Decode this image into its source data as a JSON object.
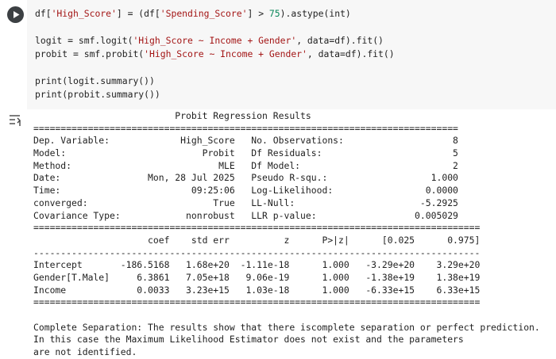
{
  "code": {
    "groups": [
      [
        [
          "df[",
          "'High_Score'",
          "] = (df[",
          "'Spending_Score'",
          "] > ",
          "75",
          ").astype(int)"
        ]
      ],
      [
        [
          "logit = smf.logit(",
          "'High_Score ~ Income + Gender'",
          ", data=df).fit()"
        ],
        [
          "probit = smf.probit(",
          "'High_Score ~ Income + Gender'",
          ", data=df).fit()"
        ]
      ],
      [
        [
          "print(logit.summary())"
        ],
        [
          "print(probit.summary())"
        ]
      ]
    ]
  },
  "output": {
    "summary": [
      "                          Probit Regression Results                           ",
      "==============================================================================",
      "Dep. Variable:             High_Score   No. Observations:                    8",
      "Model:                         Probit   Df Residuals:                        5",
      "Method:                           MLE   Df Model:                            2",
      "Date:                Mon, 28 Jul 2025   Pseudo R-squ.:                   1.000",
      "Time:                        09:25:06   Log-Likelihood:                 0.0000",
      "converged:                       True   LL-Null:                       -5.2925",
      "Covariance Type:            nonrobust   LLR p-value:                  0.005029",
      "==================================================================================",
      "                     coef    std err          z      P>|z|      [0.025      0.975]",
      "----------------------------------------------------------------------------------",
      "Intercept       -186.5168   1.68e+20  -1.11e-18      1.000   -3.29e+20    3.29e+20",
      "Gender[T.Male]     6.3861   7.05e+18   9.06e-19      1.000   -1.38e+19    1.38e+19",
      "Income             0.0033   3.23e+15   1.03e-18      1.000   -6.33e+15    6.33e+15",
      "=================================================================================="
    ],
    "note": [
      "Complete Separation: The results show that there iscomplete separation or perfect prediction.",
      "In this case the Maximum Likelihood Estimator does not exist and the parameters",
      "are not identified."
    ]
  }
}
